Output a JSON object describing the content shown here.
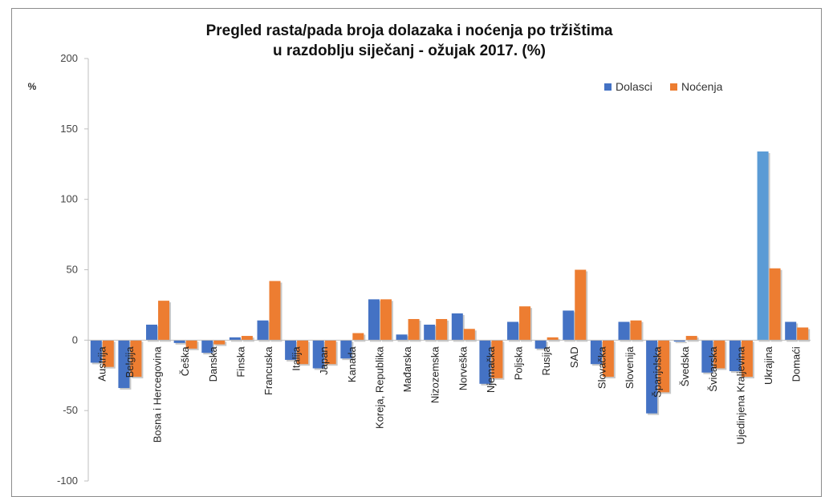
{
  "chart_data": {
    "type": "bar",
    "title_lines": [
      "Pregled rasta/pada broja dolazaka i noćenja po tržištima",
      "u razdoblju siječanj - ožujak 2017. (%)"
    ],
    "ylabel": "%",
    "xlabel": "",
    "ylim": [
      -100,
      200
    ],
    "yticks": [
      200,
      150,
      100,
      50,
      0,
      -50,
      -100
    ],
    "grid": false,
    "legend_position": "top-right",
    "categories": [
      "Austrija",
      "Belgija",
      "Bosna i Hercegovina",
      "Češka",
      "Danska",
      "Finska",
      "Francuska",
      "Italija",
      "Japan",
      "Kanada",
      "Koreja, Republika",
      "Mađarska",
      "Nizozemska",
      "Norveška",
      "Njemačka",
      "Poljska",
      "Rusija",
      "SAD",
      "Slovačka",
      "Slovenija",
      "Španjolska",
      "Švedska",
      "Švicarska",
      "Ujedinjena Kraljevina",
      "Ukrajina",
      "Domaći"
    ],
    "series": [
      {
        "name": "Dolasci",
        "color": "#4472c4",
        "values": [
          -16,
          -34,
          11,
          -2,
          -9,
          2,
          14,
          -14,
          -20,
          -13,
          29,
          4,
          11,
          19,
          -31,
          13,
          -6,
          21,
          -17,
          13,
          -52,
          -1,
          -23,
          -22,
          134,
          13
        ]
      },
      {
        "name": "Noćenja",
        "color": "#ed7d31",
        "values": [
          -19,
          -26,
          28,
          -6,
          -3,
          3,
          42,
          -17,
          -17,
          5,
          29,
          15,
          15,
          8,
          -27,
          24,
          2,
          50,
          -26,
          14,
          -37,
          3,
          -20,
          -26,
          51,
          9
        ]
      }
    ]
  }
}
